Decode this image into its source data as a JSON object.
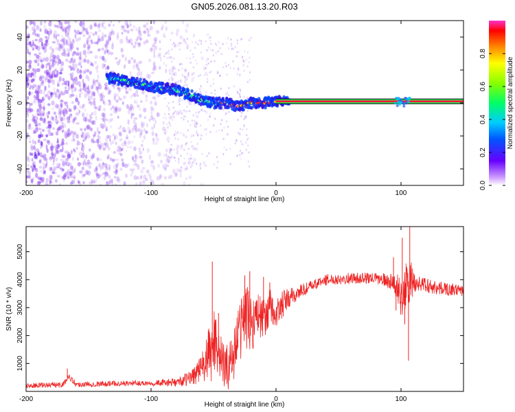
{
  "title": "GN05.2026.081.13.20.R03",
  "chart_data": [
    {
      "type": "heatmap",
      "title": "GN05.2026.081.13.20.R03",
      "xlabel": "Height of straight line (km)",
      "ylabel": "Frequency (Hz)",
      "xlim": [
        -200,
        150
      ],
      "ylim": [
        -50,
        50
      ],
      "x_ticks": [
        -200,
        -100,
        0,
        100
      ],
      "x_tick_labels": [
        "-200",
        "-100",
        "0",
        "100"
      ],
      "y_ticks": [
        -40,
        -20,
        0,
        20,
        40
      ],
      "y_tick_labels": [
        "-40",
        "-20",
        "0",
        "20",
        "40"
      ],
      "ridge": {
        "name": "dominant frequency",
        "x": [
          -130,
          -120,
          -110,
          -100,
          -90,
          -80,
          -70,
          -60,
          -50,
          -40,
          -30,
          -20,
          -10,
          0,
          10,
          150
        ],
        "y": [
          15,
          13,
          12,
          10,
          9,
          8,
          5,
          2,
          0,
          0,
          -2,
          0,
          0,
          1,
          1,
          1
        ]
      },
      "colorbar": {
        "label": "Normalized spectral amplitude",
        "range": [
          0,
          1
        ],
        "ticks": [
          0.0,
          0.2,
          0.4,
          0.6,
          0.8
        ],
        "tick_labels": [
          "0.0",
          "0.2",
          "0.4",
          "0.6",
          "0.8"
        ]
      }
    },
    {
      "type": "line",
      "xlabel": "Height of straight line (km)",
      "ylabel": "SNR (10 * v/v)",
      "xlim": [
        -200,
        150
      ],
      "ylim": [
        0,
        5900
      ],
      "x_ticks": [
        -200,
        -100,
        0,
        100
      ],
      "x_tick_labels": [
        "-200",
        "-100",
        "0",
        "100"
      ],
      "y_ticks": [
        1000,
        2000,
        3000,
        4000,
        5000
      ],
      "y_tick_labels": [
        "1000",
        "2000",
        "3000",
        "4000",
        "5000"
      ],
      "color": "#ee2222",
      "envelope": {
        "x": [
          -200,
          -170,
          -166,
          -160,
          -130,
          -100,
          -80,
          -70,
          -60,
          -52,
          -48,
          -45,
          -40,
          -35,
          -30,
          -25,
          -20,
          -15,
          -10,
          -5,
          0,
          5,
          10,
          20,
          30,
          40,
          60,
          80,
          95,
          100,
          105,
          110,
          130,
          150
        ],
        "y": [
          200,
          250,
          550,
          250,
          280,
          300,
          320,
          450,
          800,
          1400,
          2000,
          1200,
          800,
          1200,
          2000,
          2800,
          2400,
          2800,
          2600,
          3000,
          2700,
          3100,
          3300,
          3600,
          3800,
          4000,
          4050,
          4050,
          3900,
          3400,
          3800,
          3900,
          3700,
          3600
        ]
      },
      "noise": {
        "x": [
          -200,
          -170,
          -160,
          -100,
          -80,
          -70,
          -60,
          -55,
          -50,
          -45,
          -40,
          -35,
          -30,
          -25,
          -20,
          -15,
          -10,
          -5,
          0,
          5,
          10,
          20,
          30,
          40,
          80,
          94,
          98,
          102,
          108,
          112,
          150
        ],
        "amp": [
          100,
          100,
          100,
          100,
          150,
          250,
          500,
          900,
          1400,
          900,
          800,
          1000,
          1100,
          1200,
          1100,
          900,
          700,
          700,
          600,
          500,
          400,
          250,
          200,
          200,
          200,
          300,
          600,
          900,
          800,
          300,
          200
        ]
      },
      "spikes": [
        {
          "x": -167,
          "y": 820
        },
        {
          "x": -51,
          "y": 4650
        },
        {
          "x": -46,
          "y": 2800
        },
        {
          "x": -25,
          "y": 4150
        },
        {
          "x": -21,
          "y": 4300
        },
        {
          "x": -10,
          "y": 4100
        },
        {
          "x": -5,
          "y": 3900
        },
        {
          "x": 94,
          "y": 4800
        },
        {
          "x": 96,
          "y": 2900
        },
        {
          "x": 101,
          "y": 5500
        },
        {
          "x": 103,
          "y": 2400
        },
        {
          "x": 106,
          "y": 1100
        },
        {
          "x": 107,
          "y": 5900
        }
      ]
    }
  ]
}
